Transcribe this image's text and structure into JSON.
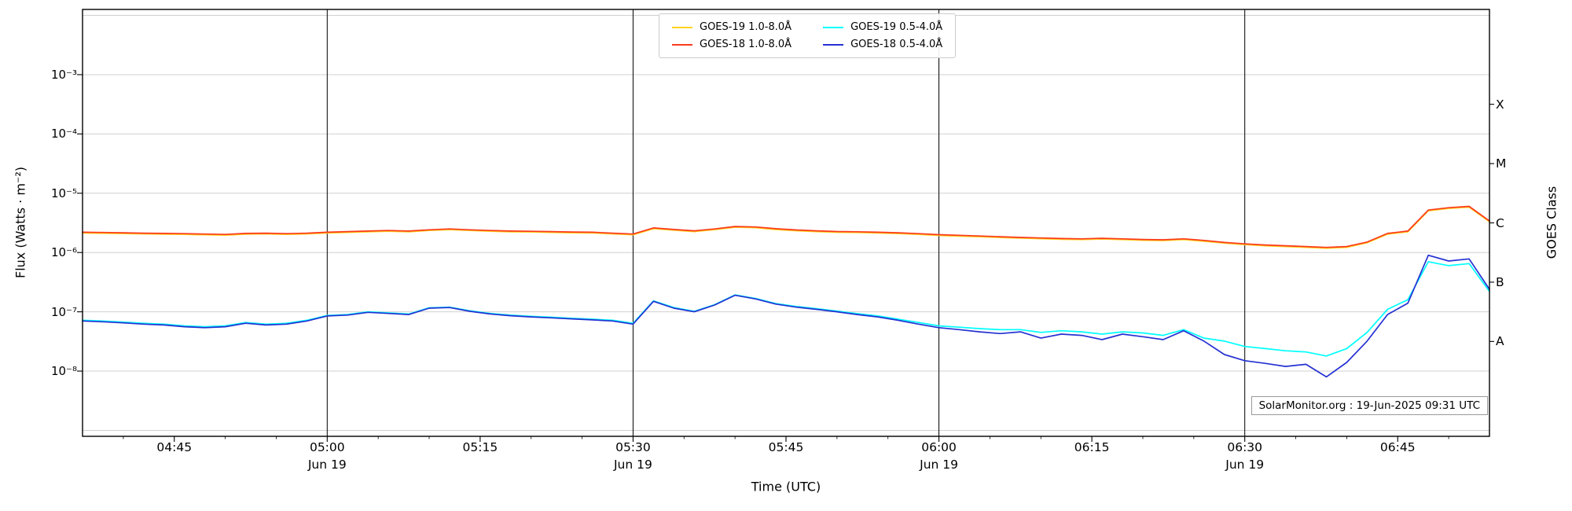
{
  "figure": {
    "watermark": "SolarMonitor.org : 19-Jun-2025 09:31 UTC"
  },
  "axes": {
    "xlabel": "Time (UTC)",
    "ylabel": "Flux (Watts · m⁻²)",
    "y2label": "GOES Class"
  },
  "chart_data": {
    "type": "line",
    "title": "",
    "x_axis_note": "minutes after 04:00 UTC on 19-Jun-2025",
    "y_scale": "log",
    "grid": "horizontal-decades",
    "legend_position": "top-center",
    "xlim_minutes": [
      36,
      174
    ],
    "ylim_exponents": [
      -9.1,
      -1.9
    ],
    "grid_exponents": [
      -9,
      -8,
      -7,
      -6,
      -5,
      -4,
      -3,
      -2
    ],
    "x_ticks": [
      {
        "minute": 45,
        "label": "04:45"
      },
      {
        "minute": 60,
        "label": "05:00"
      },
      {
        "minute": 75,
        "label": "05:15"
      },
      {
        "minute": 90,
        "label": "05:30"
      },
      {
        "minute": 105,
        "label": "05:45"
      },
      {
        "minute": 120,
        "label": "06:00"
      },
      {
        "minute": 135,
        "label": "06:15"
      },
      {
        "minute": 150,
        "label": "06:30"
      },
      {
        "minute": 165,
        "label": "06:45"
      }
    ],
    "day_marks": [
      {
        "minute": 60,
        "label": "Jun 19"
      },
      {
        "minute": 90,
        "label": "Jun 19"
      },
      {
        "minute": 120,
        "label": "Jun 19"
      },
      {
        "minute": 150,
        "label": "Jun 19"
      }
    ],
    "y_ticks": [
      {
        "exp": -8,
        "label": "10⁻⁸"
      },
      {
        "exp": -7,
        "label": "10⁻⁷"
      },
      {
        "exp": -6,
        "label": "10⁻⁶"
      },
      {
        "exp": -5,
        "label": "10⁻⁵"
      },
      {
        "exp": -4,
        "label": "10⁻⁴"
      },
      {
        "exp": -3,
        "label": "10⁻³"
      }
    ],
    "goes_classes": [
      {
        "exp": -7.5,
        "label": "A"
      },
      {
        "exp": -6.5,
        "label": "B"
      },
      {
        "exp": -5.5,
        "label": "C"
      },
      {
        "exp": -4.5,
        "label": "M"
      },
      {
        "exp": -3.5,
        "label": "X"
      }
    ],
    "x_minutes": [
      36,
      38,
      40,
      42,
      44,
      46,
      48,
      50,
      52,
      54,
      56,
      58,
      60,
      62,
      64,
      66,
      68,
      70,
      72,
      74,
      76,
      78,
      80,
      82,
      84,
      86,
      88,
      90,
      92,
      94,
      96,
      98,
      100,
      102,
      104,
      106,
      108,
      110,
      112,
      114,
      116,
      118,
      120,
      122,
      124,
      126,
      128,
      130,
      132,
      134,
      136,
      138,
      140,
      142,
      144,
      146,
      148,
      150,
      152,
      154,
      156,
      158,
      160,
      162,
      164,
      166,
      168,
      170,
      172,
      174
    ],
    "series": [
      {
        "name": "GOES-19 1.0-8.0Å",
        "color": "#ffd21c",
        "values": [
          2.13e-06,
          2.11e-06,
          2.09e-06,
          2.06e-06,
          2.04e-06,
          2.02e-06,
          1.99e-06,
          1.96e-06,
          2.04e-06,
          2.06e-06,
          2.02e-06,
          2.06e-06,
          2.13e-06,
          2.18e-06,
          2.23e-06,
          2.28e-06,
          2.23e-06,
          2.35e-06,
          2.43e-06,
          2.35e-06,
          2.28e-06,
          2.23e-06,
          2.21e-06,
          2.18e-06,
          2.15e-06,
          2.13e-06,
          2.06e-06,
          1.99e-06,
          2.52e-06,
          2.38e-06,
          2.25e-06,
          2.43e-06,
          2.67e-06,
          2.62e-06,
          2.44e-06,
          2.33e-06,
          2.25e-06,
          2.19e-06,
          2.17e-06,
          2.13e-06,
          2.09e-06,
          2.02e-06,
          1.94e-06,
          1.89e-06,
          1.84e-06,
          1.79e-06,
          1.75e-06,
          1.71e-06,
          1.67e-06,
          1.65e-06,
          1.69e-06,
          1.65e-06,
          1.61e-06,
          1.59e-06,
          1.65e-06,
          1.55e-06,
          1.44e-06,
          1.36e-06,
          1.3e-06,
          1.26e-06,
          1.22e-06,
          1.18e-06,
          1.22e-06,
          1.46e-06,
          2.04e-06,
          2.23e-06,
          5.04e-06,
          5.53e-06,
          5.82e-06,
          3.3e-06
        ]
      },
      {
        "name": "GOES-18 1.0-8.0Å",
        "color": "#fb3a1c",
        "values": [
          2.2e-06,
          2.18e-06,
          2.15e-06,
          2.12e-06,
          2.1e-06,
          2.08e-06,
          2.05e-06,
          2.02e-06,
          2.1e-06,
          2.12e-06,
          2.08e-06,
          2.12e-06,
          2.2e-06,
          2.25e-06,
          2.3e-06,
          2.35e-06,
          2.3e-06,
          2.42e-06,
          2.5e-06,
          2.42e-06,
          2.35e-06,
          2.3e-06,
          2.28e-06,
          2.25e-06,
          2.22e-06,
          2.2e-06,
          2.12e-06,
          2.05e-06,
          2.6e-06,
          2.45e-06,
          2.32e-06,
          2.5e-06,
          2.75e-06,
          2.7e-06,
          2.52e-06,
          2.4e-06,
          2.32e-06,
          2.26e-06,
          2.24e-06,
          2.2e-06,
          2.15e-06,
          2.08e-06,
          2e-06,
          1.95e-06,
          1.9e-06,
          1.85e-06,
          1.8e-06,
          1.76e-06,
          1.72e-06,
          1.7e-06,
          1.74e-06,
          1.7e-06,
          1.66e-06,
          1.64e-06,
          1.7e-06,
          1.6e-06,
          1.48e-06,
          1.4e-06,
          1.34e-06,
          1.3e-06,
          1.26e-06,
          1.22e-06,
          1.26e-06,
          1.5e-06,
          2.1e-06,
          2.3e-06,
          5.2e-06,
          5.7e-06,
          6e-06,
          3.4e-06
        ]
      },
      {
        "name": "GOES-19 0.5-4.0Å",
        "color": "#00ffff",
        "values": [
          7.2e-08,
          7e-08,
          6.7e-08,
          6.4e-08,
          6.2e-08,
          5.8e-08,
          5.6e-08,
          5.8e-08,
          6.6e-08,
          6.2e-08,
          6.4e-08,
          7.2e-08,
          8.7e-08,
          9e-08,
          1e-07,
          9.6e-08,
          9.2e-08,
          1.17e-07,
          1.2e-07,
          1.04e-07,
          9.4e-08,
          8.8e-08,
          8.4e-08,
          8.1e-08,
          7.8e-08,
          7.5e-08,
          7.2e-08,
          6.4e-08,
          1.53e-07,
          1.18e-07,
          1.02e-07,
          1.32e-07,
          1.93e-07,
          1.68e-07,
          1.38e-07,
          1.23e-07,
          1.13e-07,
          1.03e-07,
          9.3e-08,
          8.5e-08,
          7.5e-08,
          6.6e-08,
          5.8e-08,
          5.5e-08,
          5.2e-08,
          5e-08,
          5e-08,
          4.5e-08,
          4.8e-08,
          4.6e-08,
          4.2e-08,
          4.6e-08,
          4.4e-08,
          4e-08,
          5e-08,
          3.6e-08,
          3.2e-08,
          2.6e-08,
          2.4e-08,
          2.2e-08,
          2.1e-08,
          1.8e-08,
          2.4e-08,
          4.5e-08,
          1.1e-07,
          1.6e-07,
          7e-07,
          6e-07,
          6.5e-07,
          2.2e-07
        ]
      },
      {
        "name": "GOES-18 0.5-4.0Å",
        "color": "#2531d2",
        "values": [
          7e-08,
          6.8e-08,
          6.5e-08,
          6.2e-08,
          6e-08,
          5.6e-08,
          5.4e-08,
          5.6e-08,
          6.4e-08,
          6e-08,
          6.2e-08,
          7e-08,
          8.5e-08,
          8.8e-08,
          9.8e-08,
          9.4e-08,
          9e-08,
          1.15e-07,
          1.18e-07,
          1.02e-07,
          9.2e-08,
          8.6e-08,
          8.2e-08,
          7.9e-08,
          7.6e-08,
          7.3e-08,
          7e-08,
          6.2e-08,
          1.5e-07,
          1.15e-07,
          1e-07,
          1.3e-07,
          1.9e-07,
          1.65e-07,
          1.35e-07,
          1.2e-07,
          1.1e-07,
          1e-07,
          9e-08,
          8.2e-08,
          7.2e-08,
          6.2e-08,
          5.4e-08,
          5e-08,
          4.6e-08,
          4.3e-08,
          4.6e-08,
          3.6e-08,
          4.2e-08,
          4e-08,
          3.4e-08,
          4.2e-08,
          3.8e-08,
          3.4e-08,
          4.8e-08,
          3.2e-08,
          1.9e-08,
          1.5e-08,
          1.35e-08,
          1.2e-08,
          1.3e-08,
          8e-09,
          1.4e-08,
          3.2e-08,
          9e-08,
          1.4e-07,
          9e-07,
          7.2e-07,
          7.8e-07,
          2.4e-07
        ]
      }
    ]
  }
}
